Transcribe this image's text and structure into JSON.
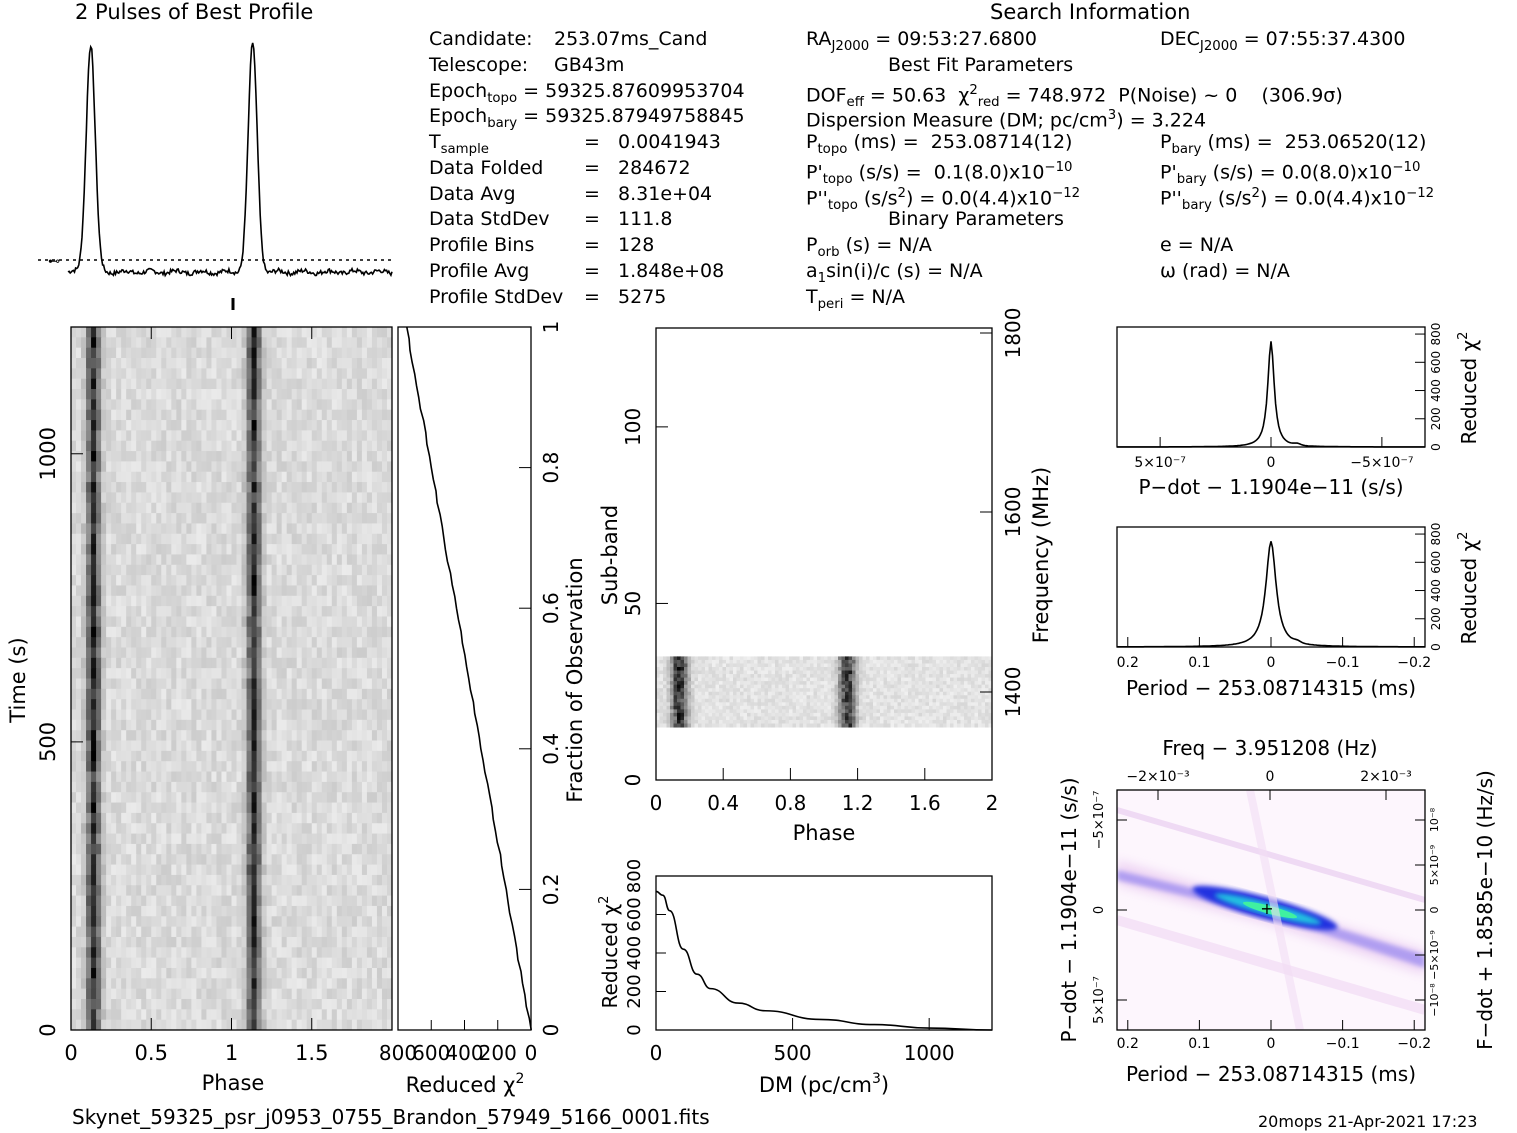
{
  "header": {
    "profile_title": "2 Pulses of Best Profile",
    "search_title": "Search Information",
    "best_fit_title": "Best Fit Parameters",
    "binary_title": "Binary Parameters"
  },
  "info_left": [
    {
      "label": "Candidate:",
      "value": "253.07ms_Cand"
    },
    {
      "label": "Telescope:",
      "value": "GB43m"
    },
    {
      "label": "Epoch",
      "sub": "topo",
      "value": "= 59325.87609953704"
    },
    {
      "label": "Epoch",
      "sub": "bary",
      "value": "= 59325.87949758845"
    },
    {
      "label": "T",
      "sub": "sample",
      "value": "=   0.0041943"
    },
    {
      "label": "Data Folded",
      "value": "=   284672"
    },
    {
      "label": "Data Avg",
      "value": "=   8.31e+04"
    },
    {
      "label": "Data StdDev",
      "value": "=   111.8"
    },
    {
      "label": "Profile Bins",
      "value": "=   128"
    },
    {
      "label": "Profile Avg",
      "value": "=   1.848e+08"
    },
    {
      "label": "Profile StdDev",
      "value": "=   5275"
    }
  ],
  "search_info": {
    "ra": "= 09:53:27.6800",
    "dec": "= 07:55:37.4300",
    "dof": "= 50.63",
    "chi2_red": "= 748.972",
    "p_noise": "P(Noise) ~ 0    (306.9σ)",
    "dm_line": "Dispersion Measure (DM; pc/cm",
    "dm_value": ") = 3.224",
    "p_topo": "(ms) =  253.08714(12)",
    "p_bary": "(ms) =  253.06520(12)",
    "pdot_topo": "(s/s) =  0.1(8.0)x10",
    "pdot_topo_exp": "−10",
    "pdot_bary": "(s/s) = 0.0(8.0)x10",
    "pdot_bary_exp": "−10",
    "pddot_topo": "(s/s",
    "pddot_topo_val": ") = 0.0(4.4)x10",
    "pddot_topo_exp": "−12",
    "pddot_bary": "(s/s",
    "pddot_bary_val": ") = 0.0(4.4)x10",
    "pddot_bary_exp": "−12",
    "p_orb": "(s) = N/A",
    "a1sini": "sin(i)/c (s) = N/A",
    "t_peri": "= N/A",
    "ecc": "e = N/A",
    "omega": "ω (rad) = N/A"
  },
  "footer": {
    "filename": "Skynet_59325_psr_j0953_0755_Brandon_57949_5166_0001.fits",
    "stamp": "20mops 21-Apr-2021 17:23"
  },
  "chart_data": [
    {
      "type": "line",
      "title": "2 Pulses of Best Profile",
      "x_range": [
        0,
        2
      ],
      "peaks_at_phase": [
        0.14,
        1.14
      ],
      "baseline": "dotted mean line"
    },
    {
      "type": "heatmap",
      "name": "time-phase",
      "xlabel": "Phase",
      "ylabel": "Time (s)",
      "x_ticks": [
        "0",
        "0.5",
        "1",
        "1.5"
      ],
      "x_range": [
        0,
        2
      ],
      "y_ticks": [
        "0",
        "500",
        "1000"
      ],
      "y_range": [
        0,
        1220
      ],
      "pulse_phases": [
        0.14,
        1.14
      ]
    },
    {
      "type": "line",
      "name": "reduced-chi2-vs-fraction",
      "xlabel": "Reduced χ",
      "x_ticks": [
        "800",
        "600",
        "400",
        "200",
        "0"
      ],
      "ylabel": "Fraction of Observation",
      "y_ticks": [
        "0",
        "0.2",
        "0.4",
        "0.6",
        "0.8",
        "1"
      ],
      "x": [
        0,
        748.972
      ],
      "y": [
        0,
        1
      ]
    },
    {
      "type": "heatmap",
      "name": "subband-phase",
      "xlabel": "Phase",
      "x_ticks": [
        "0",
        "0.4",
        "0.8",
        "1.2",
        "1.6",
        "2"
      ],
      "ylabel": "Sub-band",
      "y_ticks": [
        "0",
        "50",
        "100"
      ],
      "y_range": [
        0,
        128
      ],
      "right_label": "Frequency (MHz)",
      "right_ticks": [
        "1400",
        "1600",
        "1800"
      ],
      "active_subbands": [
        15,
        35
      ]
    },
    {
      "type": "line",
      "name": "dm-curve",
      "xlabel": "DM (pc/cm",
      "x_ticks": [
        "0",
        "500",
        "1000"
      ],
      "x_range": [
        0,
        1230
      ],
      "ylabel": "Reduced χ",
      "y_ticks": [
        "0",
        "200",
        "400",
        "600",
        "800"
      ],
      "x": [
        0,
        25,
        50,
        100,
        150,
        200,
        300,
        400,
        600,
        800,
        1000,
        1230
      ],
      "y": [
        720,
        700,
        620,
        420,
        290,
        215,
        140,
        100,
        55,
        28,
        10,
        0
      ]
    },
    {
      "type": "line",
      "name": "chi2-vs-pdot",
      "xlabel": "P-dot − 1.1904e-11 (s/s)",
      "x_ticks": [
        "5×10⁻⁷",
        "0",
        "−5×10⁻⁷"
      ],
      "ylabel": "Reduced χ",
      "y_ticks": [
        "0",
        "200",
        "400",
        "600",
        "800"
      ],
      "peak": 748.972
    },
    {
      "type": "line",
      "name": "chi2-vs-period",
      "xlabel": "Period − 253.08714315 (ms)",
      "x_ticks": [
        "0.2",
        "0.1",
        "0",
        "−0.1",
        "−0.2"
      ],
      "ylabel": "Reduced χ",
      "y_ticks": [
        "0",
        "200",
        "400",
        "600",
        "800"
      ],
      "peak": 748.972
    },
    {
      "type": "heatmap",
      "name": "period-pdot",
      "xlabel": "Period − 253.08714315 (ms)",
      "x_ticks": [
        "0.2",
        "0.1",
        "0",
        "−0.1",
        "−0.2"
      ],
      "ylabel": "P-dot − 1.1904e-11 (s/s)",
      "y_ticks": [
        "−5×10⁻⁷",
        "0",
        "5×10⁻⁷"
      ],
      "top_label": "Freq − 3.951208 (Hz)",
      "top_ticks": [
        "−2×10⁻³",
        "0",
        "2×10⁻³"
      ],
      "right_label": "F-dot + 1.8585e-10 (Hz/s)",
      "right_ticks": [
        "10⁻⁸",
        "5×10⁻⁹",
        "0",
        "−5×10⁻⁹",
        "−10⁻⁸"
      ]
    }
  ]
}
